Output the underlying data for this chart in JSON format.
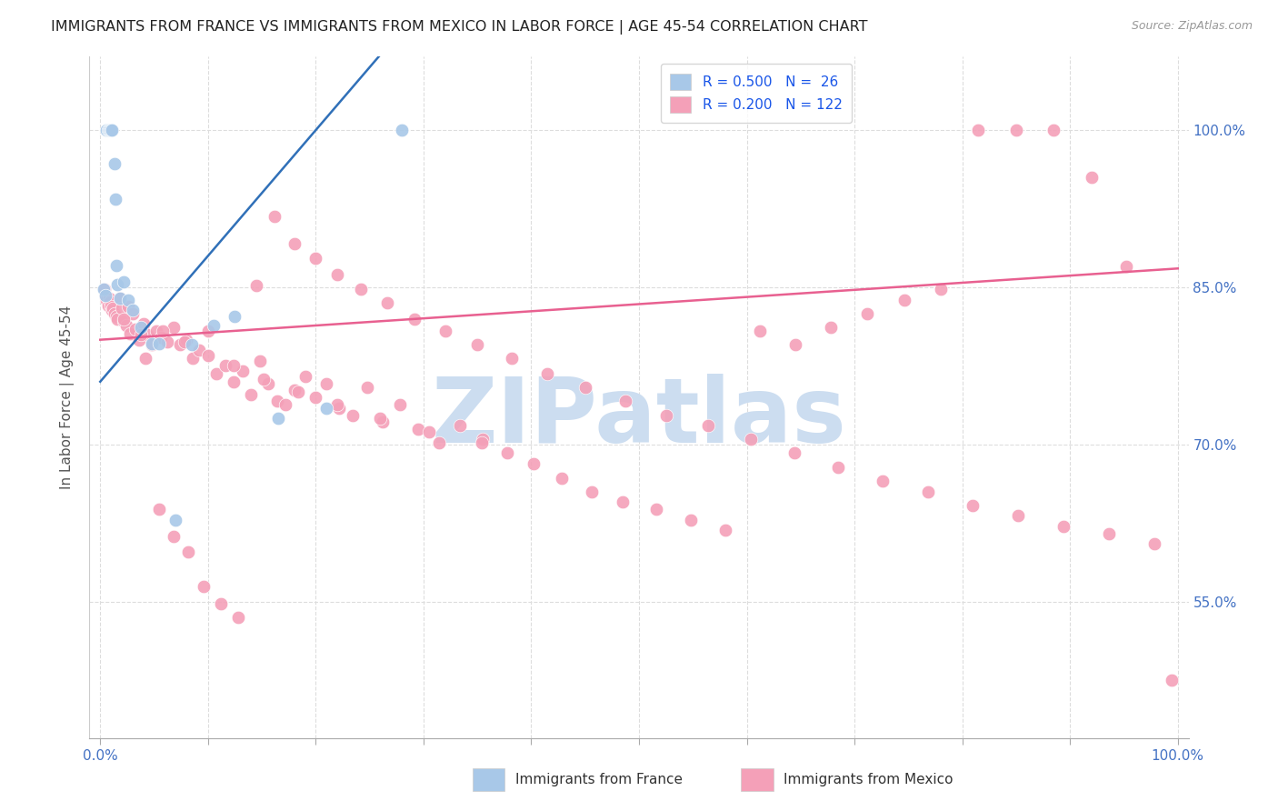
{
  "title": "IMMIGRANTS FROM FRANCE VS IMMIGRANTS FROM MEXICO IN LABOR FORCE | AGE 45-54 CORRELATION CHART",
  "source": "Source: ZipAtlas.com",
  "ylabel": "In Labor Force | Age 45-54",
  "ytick_labels": [
    "55.0%",
    "70.0%",
    "85.0%",
    "100.0%"
  ],
  "ytick_values": [
    0.55,
    0.7,
    0.85,
    1.0
  ],
  "xlim": [
    -0.01,
    1.01
  ],
  "ylim": [
    0.42,
    1.07
  ],
  "france_color": "#a8c8e8",
  "mexico_color": "#f4a0b8",
  "france_line_color": "#3070b8",
  "mexico_line_color": "#e86090",
  "watermark_text": "ZIPatlas",
  "watermark_color": "#ccddf0",
  "title_fontsize": 11.5,
  "axis_label_color": "#555555",
  "tick_label_color": "#4472c4",
  "background_color": "#ffffff",
  "grid_color": "#dddddd",
  "france_x": [
    0.003,
    0.005,
    0.006,
    0.007,
    0.008,
    0.009,
    0.01,
    0.011,
    0.013,
    0.014,
    0.015,
    0.016,
    0.018,
    0.022,
    0.026,
    0.03,
    0.038,
    0.048,
    0.055,
    0.07,
    0.085,
    0.105,
    0.125,
    0.165,
    0.21,
    0.28
  ],
  "france_y": [
    0.848,
    0.842,
    1.0,
    1.0,
    1.0,
    1.0,
    1.0,
    1.0,
    0.968,
    0.934,
    0.871,
    0.853,
    0.84,
    0.855,
    0.838,
    0.828,
    0.812,
    0.796,
    0.796,
    0.628,
    0.795,
    0.814,
    0.822,
    0.725,
    0.735,
    1.0
  ],
  "mexico_x": [
    0.004,
    0.005,
    0.006,
    0.007,
    0.008,
    0.009,
    0.01,
    0.011,
    0.012,
    0.013,
    0.015,
    0.016,
    0.018,
    0.02,
    0.022,
    0.024,
    0.026,
    0.028,
    0.03,
    0.033,
    0.036,
    0.04,
    0.044,
    0.048,
    0.052,
    0.056,
    0.062,
    0.068,
    0.074,
    0.08,
    0.086,
    0.092,
    0.1,
    0.108,
    0.116,
    0.124,
    0.132,
    0.14,
    0.148,
    0.156,
    0.164,
    0.172,
    0.18,
    0.19,
    0.2,
    0.21,
    0.222,
    0.234,
    0.248,
    0.262,
    0.278,
    0.295,
    0.314,
    0.334,
    0.355,
    0.378,
    0.402,
    0.428,
    0.456,
    0.485,
    0.516,
    0.548,
    0.58,
    0.612,
    0.645,
    0.678,
    0.712,
    0.746,
    0.78,
    0.815,
    0.85,
    0.885,
    0.92,
    0.952,
    0.978,
    0.994,
    0.042,
    0.055,
    0.068,
    0.082,
    0.096,
    0.112,
    0.128,
    0.145,
    0.162,
    0.18,
    0.2,
    0.22,
    0.242,
    0.266,
    0.292,
    0.32,
    0.35,
    0.382,
    0.415,
    0.45,
    0.487,
    0.525,
    0.564,
    0.604,
    0.644,
    0.685,
    0.726,
    0.768,
    0.81,
    0.852,
    0.894,
    0.936,
    0.022,
    0.038,
    0.058,
    0.078,
    0.1,
    0.124,
    0.152,
    0.184,
    0.22,
    0.26,
    0.305,
    0.354
  ],
  "mexico_y": [
    0.848,
    0.842,
    0.838,
    0.833,
    0.84,
    0.836,
    0.832,
    0.828,
    0.83,
    0.825,
    0.822,
    0.82,
    0.84,
    0.83,
    0.818,
    0.814,
    0.832,
    0.806,
    0.825,
    0.81,
    0.8,
    0.815,
    0.805,
    0.795,
    0.808,
    0.802,
    0.798,
    0.812,
    0.795,
    0.8,
    0.782,
    0.79,
    0.808,
    0.768,
    0.775,
    0.76,
    0.77,
    0.748,
    0.78,
    0.758,
    0.742,
    0.738,
    0.752,
    0.765,
    0.745,
    0.758,
    0.735,
    0.728,
    0.755,
    0.722,
    0.738,
    0.715,
    0.702,
    0.718,
    0.705,
    0.692,
    0.682,
    0.668,
    0.655,
    0.645,
    0.638,
    0.628,
    0.618,
    0.808,
    0.795,
    0.812,
    0.825,
    0.838,
    0.848,
    1.0,
    1.0,
    1.0,
    0.955,
    0.87,
    0.605,
    0.475,
    0.782,
    0.638,
    0.612,
    0.598,
    0.565,
    0.548,
    0.535,
    0.852,
    0.918,
    0.892,
    0.878,
    0.862,
    0.848,
    0.835,
    0.82,
    0.808,
    0.795,
    0.782,
    0.768,
    0.755,
    0.742,
    0.728,
    0.718,
    0.705,
    0.692,
    0.678,
    0.665,
    0.655,
    0.642,
    0.632,
    0.622,
    0.615,
    0.82,
    0.805,
    0.808,
    0.798,
    0.785,
    0.775,
    0.762,
    0.75,
    0.738,
    0.725,
    0.712,
    0.702
  ]
}
